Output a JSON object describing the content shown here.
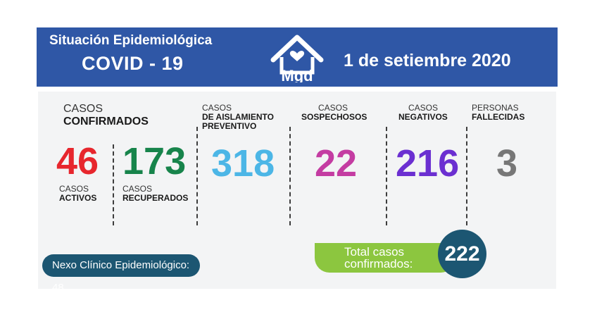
{
  "header": {
    "title_line1": "Situación Epidemiológica",
    "title_line2": "COVID - 19",
    "logo_text": "Mgd",
    "date": "1 de setiembre 2020",
    "background_color": "#2f57a6"
  },
  "stats": {
    "confirmados": {
      "label_line1": "CASOS",
      "label_line2": "CONFIRMADOS"
    },
    "activos": {
      "value": "46",
      "label_line1": "CASOS",
      "label_line2": "ACTIVOS",
      "color": "#e7262d"
    },
    "recuperados": {
      "value": "173",
      "label_line1": "CASOS",
      "label_line2": "RECUPERADOS",
      "color": "#17844b"
    },
    "aislamiento": {
      "value": "318",
      "label_line1": "CASOS",
      "label_line2": "DE AISLAMIENTO",
      "label_line3": "PREVENTIVO",
      "color": "#4cb6e6"
    },
    "sospechosos": {
      "value": "22",
      "label_line1": "CASOS",
      "label_line2": "SOSPECHOSOS",
      "color": "#c43ca2"
    },
    "negativos": {
      "value": "216",
      "label_line1": "CASOS",
      "label_line2": "NEGATIVOS",
      "color": "#6b2fd1"
    },
    "fallecidas": {
      "value": "3",
      "label_line1": "PERSONAS",
      "label_line2": "FALLECIDAS",
      "color": "#777777"
    }
  },
  "nexo": {
    "text": "Nexo Clínico Epidemiológico:",
    "value": "48"
  },
  "total": {
    "label_line1": "Total casos",
    "label_line2": "confirmados:",
    "value": "222"
  }
}
